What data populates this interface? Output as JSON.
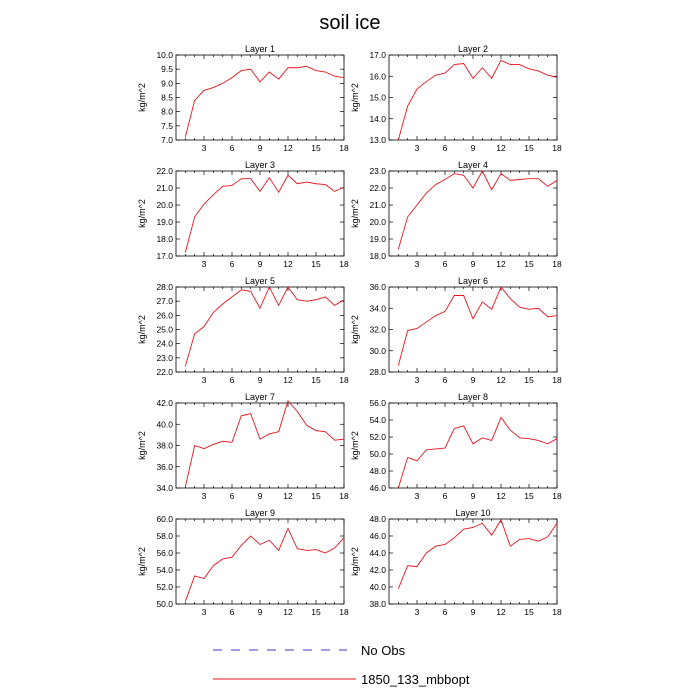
{
  "title": "soil ice",
  "legend": {
    "placement": "bottom-center",
    "entries": [
      {
        "label": "No Obs",
        "color": "#3b3bc8",
        "style": "dashed"
      },
      {
        "label": "1850_133_mbbopt",
        "color": "#e8141e",
        "style": "solid"
      }
    ]
  },
  "chart_data": [
    {
      "type": "line",
      "title": "Layer 1",
      "ylabel": "kg/m^2",
      "x": [
        1,
        2,
        3,
        4,
        5,
        6,
        7,
        8,
        9,
        10,
        11,
        12,
        13,
        14,
        15,
        16,
        17,
        18
      ],
      "xlim": [
        0,
        18
      ],
      "xticks": [
        3,
        6,
        9,
        12,
        15,
        18
      ],
      "ylim": [
        7.0,
        10.0
      ],
      "yticks": [
        "7.0",
        "7.5",
        "8.0",
        "8.5",
        "9.0",
        "9.5",
        "10.0"
      ],
      "series": [
        {
          "values": [
            7.1,
            8.4,
            8.75,
            8.85,
            9.0,
            9.2,
            9.45,
            9.5,
            9.05,
            9.4,
            9.15,
            9.55,
            9.55,
            9.6,
            9.45,
            9.4,
            9.25,
            9.2
          ]
        }
      ]
    },
    {
      "type": "line",
      "title": "Layer 2",
      "ylabel": "kg/m^2",
      "x": [
        1,
        2,
        3,
        4,
        5,
        6,
        7,
        8,
        9,
        10,
        11,
        12,
        13,
        14,
        15,
        16,
        17,
        18
      ],
      "xlim": [
        0,
        18
      ],
      "xticks": [
        3,
        6,
        9,
        12,
        15,
        18
      ],
      "ylim": [
        13.0,
        17.0
      ],
      "yticks": [
        "13.0",
        "14.0",
        "15.0",
        "16.0",
        "17.0"
      ],
      "series": [
        {
          "values": [
            13.0,
            14.6,
            15.4,
            15.75,
            16.05,
            16.15,
            16.55,
            16.6,
            15.9,
            16.4,
            15.9,
            16.75,
            16.55,
            16.55,
            16.35,
            16.25,
            16.05,
            15.95
          ]
        }
      ]
    },
    {
      "type": "line",
      "title": "Layer 3",
      "ylabel": "kg/m^2",
      "x": [
        1,
        2,
        3,
        4,
        5,
        6,
        7,
        8,
        9,
        10,
        11,
        12,
        13,
        14,
        15,
        16,
        17,
        18
      ],
      "xlim": [
        0,
        18
      ],
      "xticks": [
        3,
        6,
        9,
        12,
        15,
        18
      ],
      "ylim": [
        17.0,
        22.0
      ],
      "yticks": [
        "17.0",
        "18.0",
        "19.0",
        "20.0",
        "21.0",
        "22.0"
      ],
      "series": [
        {
          "values": [
            17.2,
            19.3,
            20.05,
            20.6,
            21.1,
            21.15,
            21.55,
            21.55,
            20.8,
            21.6,
            20.75,
            21.75,
            21.25,
            21.35,
            21.25,
            21.2,
            20.8,
            21.05
          ]
        }
      ]
    },
    {
      "type": "line",
      "title": "Layer 4",
      "ylabel": "kg/m^2",
      "x": [
        1,
        2,
        3,
        4,
        5,
        6,
        7,
        8,
        9,
        10,
        11,
        12,
        13,
        14,
        15,
        16,
        17,
        18
      ],
      "xlim": [
        0,
        18
      ],
      "xticks": [
        3,
        6,
        9,
        12,
        15,
        18
      ],
      "ylim": [
        18.0,
        23.0
      ],
      "yticks": [
        "18.0",
        "19.0",
        "20.0",
        "21.0",
        "22.0",
        "23.0"
      ],
      "series": [
        {
          "values": [
            18.4,
            20.3,
            21.0,
            21.7,
            22.2,
            22.5,
            22.85,
            22.75,
            22.0,
            23.0,
            21.9,
            22.85,
            22.45,
            22.5,
            22.55,
            22.55,
            22.1,
            22.45
          ]
        }
      ]
    },
    {
      "type": "line",
      "title": "Layer 5",
      "ylabel": "kg/m^2",
      "x": [
        1,
        2,
        3,
        4,
        5,
        6,
        7,
        8,
        9,
        10,
        11,
        12,
        13,
        14,
        15,
        16,
        17,
        18
      ],
      "xlim": [
        0,
        18
      ],
      "xticks": [
        3,
        6,
        9,
        12,
        15,
        18
      ],
      "ylim": [
        22.0,
        28.0
      ],
      "yticks": [
        "22.0",
        "23.0",
        "24.0",
        "25.0",
        "26.0",
        "27.0",
        "28.0"
      ],
      "series": [
        {
          "values": [
            22.4,
            24.7,
            25.2,
            26.2,
            26.8,
            27.3,
            27.8,
            27.7,
            26.5,
            28.0,
            26.7,
            28.0,
            27.1,
            27.0,
            27.1,
            27.3,
            26.7,
            27.1
          ]
        }
      ]
    },
    {
      "type": "line",
      "title": "Layer 6",
      "ylabel": "kg/m^2",
      "x": [
        1,
        2,
        3,
        4,
        5,
        6,
        7,
        8,
        9,
        10,
        11,
        12,
        13,
        14,
        15,
        16,
        17,
        18
      ],
      "xlim": [
        0,
        18
      ],
      "xticks": [
        3,
        6,
        9,
        12,
        15,
        18
      ],
      "ylim": [
        28.0,
        36.0
      ],
      "yticks": [
        "28.0",
        "30.0",
        "32.0",
        "34.0",
        "36.0"
      ],
      "series": [
        {
          "values": [
            28.6,
            31.9,
            32.1,
            32.7,
            33.3,
            33.7,
            35.2,
            35.2,
            33.0,
            34.6,
            33.9,
            36.0,
            34.9,
            34.1,
            33.9,
            34.0,
            33.2,
            33.3
          ]
        }
      ]
    },
    {
      "type": "line",
      "title": "Layer 7",
      "ylabel": "kg/m^2",
      "x": [
        1,
        2,
        3,
        4,
        5,
        6,
        7,
        8,
        9,
        10,
        11,
        12,
        13,
        14,
        15,
        16,
        17,
        18
      ],
      "xlim": [
        0,
        18
      ],
      "xticks": [
        3,
        6,
        9,
        12,
        15,
        18
      ],
      "ylim": [
        34.0,
        42.0
      ],
      "yticks": [
        "34.0",
        "36.0",
        "38.0",
        "40.0",
        "42.0"
      ],
      "series": [
        {
          "values": [
            34.1,
            38.0,
            37.7,
            38.1,
            38.4,
            38.3,
            40.8,
            41.0,
            38.6,
            39.1,
            39.3,
            42.2,
            41.2,
            39.9,
            39.4,
            39.3,
            38.5,
            38.6
          ]
        }
      ]
    },
    {
      "type": "line",
      "title": "Layer 8",
      "ylabel": "kg/m^2",
      "x": [
        1,
        2,
        3,
        4,
        5,
        6,
        7,
        8,
        9,
        10,
        11,
        12,
        13,
        14,
        15,
        16,
        17,
        18
      ],
      "xlim": [
        0,
        18
      ],
      "xticks": [
        3,
        6,
        9,
        12,
        15,
        18
      ],
      "ylim": [
        46.0,
        56.0
      ],
      "yticks": [
        "46.0",
        "48.0",
        "50.0",
        "52.0",
        "54.0",
        "56.0"
      ],
      "series": [
        {
          "values": [
            46.0,
            49.6,
            49.2,
            50.5,
            50.6,
            50.7,
            53.0,
            53.3,
            51.2,
            51.9,
            51.6,
            54.3,
            52.8,
            51.9,
            51.8,
            51.6,
            51.2,
            51.8
          ]
        }
      ]
    },
    {
      "type": "line",
      "title": "Layer 9",
      "ylabel": "kg/m^2",
      "x": [
        1,
        2,
        3,
        4,
        5,
        6,
        7,
        8,
        9,
        10,
        11,
        12,
        13,
        14,
        15,
        16,
        17,
        18
      ],
      "xlim": [
        0,
        18
      ],
      "xticks": [
        3,
        6,
        9,
        12,
        15,
        18
      ],
      "ylim": [
        50.0,
        60.0
      ],
      "yticks": [
        "50.0",
        "52.0",
        "54.0",
        "56.0",
        "58.0",
        "60.0"
      ],
      "series": [
        {
          "values": [
            50.3,
            53.3,
            53.0,
            54.5,
            55.3,
            55.5,
            56.9,
            58.0,
            57.0,
            57.5,
            56.3,
            58.9,
            56.5,
            56.3,
            56.4,
            56.0,
            56.6,
            57.8
          ]
        }
      ]
    },
    {
      "type": "line",
      "title": "Layer 10",
      "ylabel": "kg/m^2",
      "x": [
        1,
        2,
        3,
        4,
        5,
        6,
        7,
        8,
        9,
        10,
        11,
        12,
        13,
        14,
        15,
        16,
        17,
        18
      ],
      "xlim": [
        0,
        18
      ],
      "xticks": [
        3,
        6,
        9,
        12,
        15,
        18
      ],
      "ylim": [
        38.0,
        48.0
      ],
      "yticks": [
        "38.0",
        "40.0",
        "42.0",
        "44.0",
        "46.0",
        "48.0"
      ],
      "series": [
        {
          "values": [
            39.8,
            42.5,
            42.4,
            44.0,
            44.8,
            45.0,
            45.8,
            46.8,
            47.0,
            47.5,
            46.1,
            47.9,
            44.8,
            45.6,
            45.7,
            45.4,
            45.9,
            47.5
          ]
        }
      ]
    }
  ]
}
